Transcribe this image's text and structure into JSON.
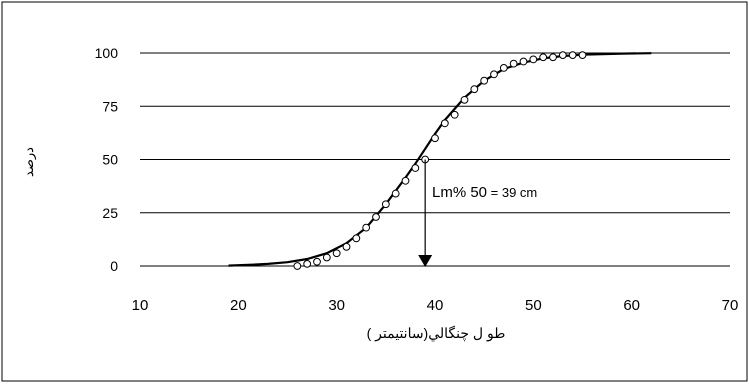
{
  "chart_data": {
    "type": "scatter",
    "title": "",
    "xlabel": "طو ل چنگالي(سانتيمتر )",
    "ylabel": "درصد",
    "xlim": [
      10,
      70
    ],
    "ylim": [
      0,
      100
    ],
    "x_ticks": [
      "10",
      "20",
      "30",
      "40",
      "50",
      "60",
      "70"
    ],
    "y_ticks": [
      "0",
      "25",
      "50",
      "75",
      "100"
    ],
    "grid": "horizontal",
    "annotation": {
      "label": "Lm% 50",
      "text": " = 39  cm",
      "x": 39,
      "y": 50
    },
    "series": [
      {
        "kind": "observed",
        "x": [
          26,
          27,
          28,
          29,
          30,
          31,
          32,
          33,
          34,
          35,
          36,
          37,
          38,
          39,
          40,
          41,
          42,
          43,
          44,
          45,
          46,
          47,
          48,
          49,
          50,
          51,
          52,
          53,
          54,
          55
        ],
        "y": [
          0,
          1,
          2,
          4,
          6,
          9,
          13,
          18,
          23,
          29,
          34,
          40,
          46,
          50,
          60,
          67,
          71,
          78,
          83,
          87,
          90,
          93,
          95,
          96,
          97,
          98,
          98,
          99,
          99,
          99
        ]
      },
      {
        "kind": "fitted",
        "x": [
          19,
          21,
          23,
          25,
          27,
          29,
          31,
          33,
          35,
          37,
          38,
          39,
          40,
          41,
          43,
          45,
          47,
          49,
          51,
          53,
          55,
          57,
          59,
          62
        ],
        "y": [
          0.2,
          0.5,
          1,
          1.8,
          3.3,
          6,
          10.7,
          18,
          29,
          41.5,
          48,
          55,
          62,
          68.5,
          79,
          87,
          92.5,
          95.5,
          97.5,
          98.6,
          99.2,
          99.5,
          99.7,
          99.9
        ]
      }
    ]
  }
}
